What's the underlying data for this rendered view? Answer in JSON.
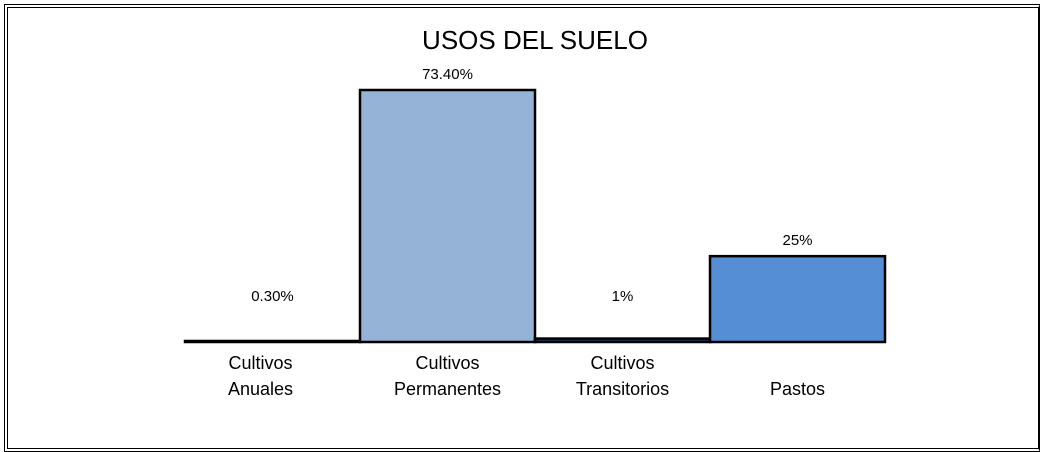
{
  "chart_data": {
    "type": "bar",
    "title": "USOS DEL SUELO",
    "categories": [
      "Cultivos Anuales",
      "Cultivos Permanentes",
      "Cultivos Transitorios",
      "Pastos"
    ],
    "values": [
      0.3,
      73.4,
      1,
      25
    ],
    "value_labels": [
      "0.30%",
      "73.40%",
      "1%",
      "25%"
    ],
    "colors": [
      "#b8cce4",
      "#95b3d7",
      "#1f3864",
      "#558ed5"
    ]
  }
}
